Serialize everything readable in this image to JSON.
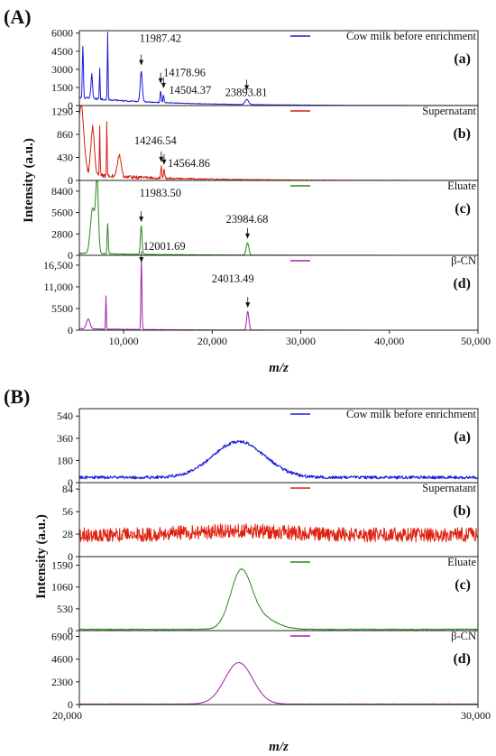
{
  "figure": {
    "panel_A_label": "(A)",
    "panel_B_label": "(B)"
  },
  "chart_data": [
    {
      "type": "line",
      "panel": "(A)",
      "xlabel": "m/z",
      "ylabel": "Intensity (a.u.)",
      "xlim": [
        5000,
        50000
      ],
      "xticks": [
        10000,
        20000,
        30000,
        40000,
        50000
      ],
      "xtick_labels": [
        "10,000",
        "20,000",
        "30,000",
        "40,000",
        "50,000"
      ],
      "grid": false,
      "legend_position": "top-right",
      "series": [
        {
          "name": "Cow milk before enrichment",
          "sublabel": "(a)",
          "color": "#1a1ad6",
          "ylim": [
            0,
            6200
          ],
          "yticks": [
            0,
            1500,
            3000,
            4500,
            6000
          ],
          "ytick_labels": [
            "0",
            "1500",
            "3000",
            "4500",
            "6000"
          ],
          "baseline": 600,
          "noise": 180,
          "peaks": [
            [
              5400,
              4200,
              60
            ],
            [
              6400,
              2000,
              90
            ],
            [
              7300,
              2600,
              40
            ],
            [
              8200,
              5600,
              40
            ],
            [
              11987,
              2500,
              120
            ],
            [
              14179,
              1000,
              60
            ],
            [
              14504,
              600,
              60
            ],
            [
              23894,
              420,
              200
            ]
          ],
          "annotations": [
            {
              "x": 11987.42,
              "label": "11987.42"
            },
            {
              "x": 14178.96,
              "label": "14178.96"
            },
            {
              "x": 14504.37,
              "label": "14504.37"
            },
            {
              "x": 23893.81,
              "label": "23893.81"
            }
          ]
        },
        {
          "name": "Supernatant",
          "sublabel": "(b)",
          "color": "#d42010",
          "ylim": [
            0,
            1400
          ],
          "yticks": [
            0,
            430,
            860,
            1290
          ],
          "ytick_labels": [
            "0",
            "430",
            "860",
            "1290"
          ],
          "baseline": 60,
          "noise": 120,
          "peaks": [
            [
              5200,
              1350,
              300
            ],
            [
              6500,
              900,
              200
            ],
            [
              7300,
              900,
              40
            ],
            [
              8100,
              1000,
              40
            ],
            [
              9500,
              400,
              200
            ],
            [
              14247,
              230,
              60
            ],
            [
              14565,
              180,
              60
            ]
          ],
          "annotations": [
            {
              "x": 14246.54,
              "label": "14246.54"
            },
            {
              "x": 14564.86,
              "label": "14564.86"
            }
          ]
        },
        {
          "name": "Eluate",
          "sublabel": "(c)",
          "color": "#2a8a1c",
          "ylim": [
            0,
            9800
          ],
          "yticks": [
            0,
            2800,
            5600,
            8400
          ],
          "ytick_labels": [
            "0",
            "2800",
            "5600",
            "8400"
          ],
          "baseline": 200,
          "noise": 150,
          "peaks": [
            [
              6500,
              6000,
              250
            ],
            [
              7000,
              9500,
              150
            ],
            [
              8200,
              4000,
              60
            ],
            [
              11984,
              3800,
              90
            ],
            [
              23985,
              1600,
              150
            ]
          ],
          "annotations": [
            {
              "x": 11983.5,
              "label": "11983.50"
            },
            {
              "x": 23984.68,
              "label": "23984.68"
            }
          ]
        },
        {
          "name": "β-CN",
          "sublabel": "(d)",
          "color": "#a020a8",
          "ylim": [
            0,
            19000
          ],
          "yticks": [
            0,
            5500,
            11000,
            16500
          ],
          "ytick_labels": [
            "0",
            "5500",
            "11,000",
            "16,500"
          ],
          "baseline": 300,
          "noise": 150,
          "peaks": [
            [
              6000,
              2500,
              200
            ],
            [
              8000,
              8500,
              40
            ],
            [
              12002,
              18000,
              60
            ],
            [
              24013,
              4700,
              130
            ]
          ],
          "annotations": [
            {
              "x": 12001.69,
              "label": "12001.69"
            },
            {
              "x": 24013.49,
              "label": "24013.49"
            }
          ]
        }
      ]
    },
    {
      "type": "line",
      "panel": "(B)",
      "xlabel": "m/z",
      "ylabel": "Intensity (a.u.)",
      "xlim": [
        20000,
        30000
      ],
      "xticks": [
        20000,
        30000
      ],
      "xtick_labels": [
        "20,000",
        "30,000"
      ],
      "grid": false,
      "legend_position": "top-right",
      "series": [
        {
          "name": "Cow milk before enrichment",
          "sublabel": "(a)",
          "color": "#1a1ad6",
          "ylim": [
            0,
            600
          ],
          "yticks": [
            0,
            180,
            360,
            540
          ],
          "ytick_labels": [
            "0",
            "180",
            "360",
            "540"
          ],
          "baseline": 30,
          "noise": 25,
          "peaks": [
            [
              24000,
              290,
              650
            ]
          ]
        },
        {
          "name": "Supernatant",
          "sublabel": "(b)",
          "color": "#e02010",
          "ylim": [
            0,
            92
          ],
          "yticks": [
            0,
            28,
            56,
            84
          ],
          "ytick_labels": [
            "0",
            "28",
            "56",
            "84"
          ],
          "baseline": 18,
          "noise": 18,
          "peaks": [
            [
              24000,
              5,
              1200
            ]
          ]
        },
        {
          "name": "Eluate",
          "sublabel": "(c)",
          "color": "#2a8a1c",
          "ylim": [
            0,
            1800
          ],
          "yticks": [
            0,
            530,
            1060,
            1590
          ],
          "ytick_labels": [
            "0",
            "530",
            "1060",
            "1590"
          ],
          "baseline": 20,
          "noise": 20,
          "peaks": [
            [
              24050,
              1300,
              260
            ],
            [
              24500,
              300,
              400
            ]
          ]
        },
        {
          "name": "β-CN",
          "sublabel": "(d)",
          "color": "#a020a8",
          "ylim": [
            0,
            7500
          ],
          "yticks": [
            0,
            2300,
            4600,
            6900
          ],
          "ytick_labels": [
            "0",
            "2300",
            "4600",
            "6900"
          ],
          "baseline": 40,
          "noise": 30,
          "peaks": [
            [
              24000,
              4200,
              350
            ]
          ]
        }
      ]
    }
  ]
}
